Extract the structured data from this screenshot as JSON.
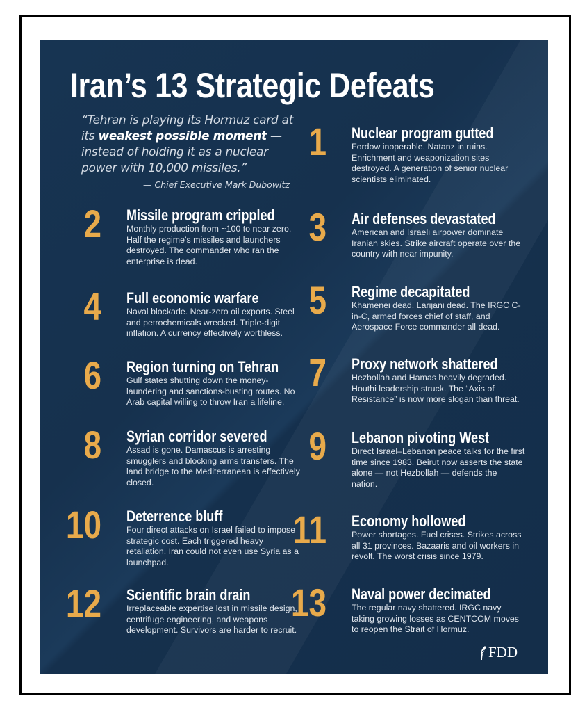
{
  "title": "Iran’s 13 Strategic Defeats",
  "quote": {
    "part1": "“Tehran is playing its Hormuz card at its ",
    "emphasis": "weakest possible moment",
    "part2": " — instead of holding it as a nuclear power with 10,000 missiles.”",
    "attribution": "— Chief Executive Mark Dubowitz"
  },
  "colors": {
    "background": "#173452",
    "number": "#e8aa4b",
    "heading": "#ffffff"
  },
  "items": [
    {
      "number": "1",
      "heading": "Nuclear program gutted",
      "text": "Fordow inoperable. Natanz in ruins. Enrichment and weaponization sites destroyed. A generation of senior nuclear scientists eliminated."
    },
    {
      "number": "2",
      "heading": "Missile program crippled",
      "text": "Monthly production from ~100 to near zero. Half the regime’s missiles and launchers destroyed. The commander who ran the enterprise is dead."
    },
    {
      "number": "3",
      "heading": "Air defenses devastated",
      "text": "American and Israeli airpower dominate Iranian skies. Strike aircraft operate over the country with near impunity."
    },
    {
      "number": "4",
      "heading": "Full economic warfare",
      "text": "Naval blockade. Near-zero oil exports. Steel and petrochemicals wrecked. Triple-digit inflation. A currency effectively worthless."
    },
    {
      "number": "5",
      "heading": "Regime decapitated",
      "text": "Khamenei dead. Larijani dead. The IRGC C-in-C, armed forces chief of staff, and Aerospace Force commander all dead."
    },
    {
      "number": "6",
      "heading": "Region turning on Tehran",
      "text": "Gulf states shutting down the money-laundering and sanctions-busting routes. No Arab capital willing to throw Iran a lifeline."
    },
    {
      "number": "7",
      "heading": "Proxy network shattered",
      "text": "Hezbollah and Hamas heavily degraded. Houthi leadership struck. The “Axis of Resistance” is now more slogan than threat."
    },
    {
      "number": "8",
      "heading": "Syrian corridor severed",
      "text": "Assad is gone. Damascus is arresting smugglers and blocking arms transfers. The land bridge to the Mediterranean is effectively closed."
    },
    {
      "number": "9",
      "heading": "Lebanon pivoting West",
      "text": "Direct Israel–Lebanon peace talks for the first time since 1983. Beirut now asserts the state alone — not Hezbollah — defends the nation."
    },
    {
      "number": "10",
      "heading": "Deterrence bluff",
      "text": "Four direct attacks on Israel failed to impose strategic cost. Each triggered heavy retaliation. Iran could not even use Syria as a launchpad."
    },
    {
      "number": "11",
      "heading": "Economy hollowed",
      "text": "Power shortages. Fuel crises. Strikes across all 31 provinces. Bazaaris and oil workers in revolt. The worst crisis since 1979."
    },
    {
      "number": "12",
      "heading": "Scientific brain drain",
      "text": "Irreplaceable expertise lost in missile design, centrifuge engineering, and weapons development. Survivors are harder to recruit."
    },
    {
      "number": "13",
      "heading": "Naval power decimated",
      "text": "The regular navy shattered. IRGC navy taking growing losses as CENTCOM moves to reopen the Strait of Hormuz."
    }
  ],
  "logo": {
    "text": "FDD",
    "icon": "quill-icon"
  }
}
